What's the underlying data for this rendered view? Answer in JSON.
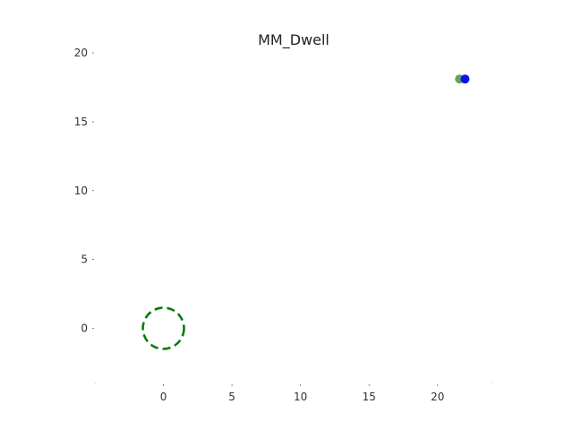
{
  "chart_data": {
    "type": "scatter",
    "title": "MM_Dwell",
    "xlabel": "",
    "ylabel": "",
    "xlim": [
      -5,
      24
    ],
    "ylim": [
      -4,
      20
    ],
    "xticks": [
      0,
      5,
      10,
      15,
      20
    ],
    "yticks": [
      0,
      5,
      10,
      15,
      20
    ],
    "grid": false,
    "points": [
      {
        "x": 21.6,
        "y": 18.1,
        "color": "#5fa35f"
      },
      {
        "x": 22.0,
        "y": 18.1,
        "color": "#1010ee"
      }
    ],
    "circle": {
      "x": 0,
      "y": 0,
      "radius": 1.5,
      "color": "#007a00",
      "style": "dashed"
    }
  }
}
